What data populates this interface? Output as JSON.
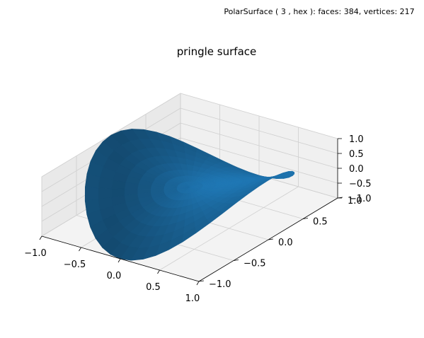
{
  "figure": {
    "caption": "PolarSurface ( 3 , hex ):  faces: 384,  vertices: 217"
  },
  "chart_data": {
    "type": "surface3d",
    "title": "pringle surface",
    "surface": {
      "name": "PolarSurface",
      "rez": 3,
      "basis": "hex",
      "faces": 384,
      "vertices": 217,
      "domain": "unit disk",
      "function": "z = x^2 - y^2",
      "color": "#1f77b4"
    },
    "axes": {
      "x": {
        "label": "",
        "lim": [
          -1.0,
          1.0
        ],
        "ticks": [
          -1.0,
          -0.5,
          0.0,
          0.5,
          1.0
        ],
        "tick_labels": [
          "−1.0",
          "−0.5",
          "0.0",
          "0.5",
          "1.0"
        ]
      },
      "y": {
        "label": "",
        "lim": [
          -1.0,
          1.0
        ],
        "ticks": [
          -1.0,
          -0.5,
          0.0,
          0.5,
          1.0
        ],
        "tick_labels": [
          "−1.0",
          "−0.5",
          "0.0",
          "0.5",
          "1.0"
        ]
      },
      "z": {
        "label": "",
        "lim": [
          -1.0,
          1.0
        ],
        "ticks": [
          -1.0,
          -0.5,
          0.0,
          0.5,
          1.0
        ],
        "tick_labels": [
          "−1.0",
          "−0.5",
          "0.0",
          "0.5",
          "1.0"
        ]
      }
    },
    "grid": true,
    "colors": {
      "surface": "#1f77b4",
      "pane_left": "#e9e9e9",
      "pane_back": "#f0f0f0",
      "pane_floor": "#f3f3f3",
      "grid": "#cfcfcf"
    }
  }
}
